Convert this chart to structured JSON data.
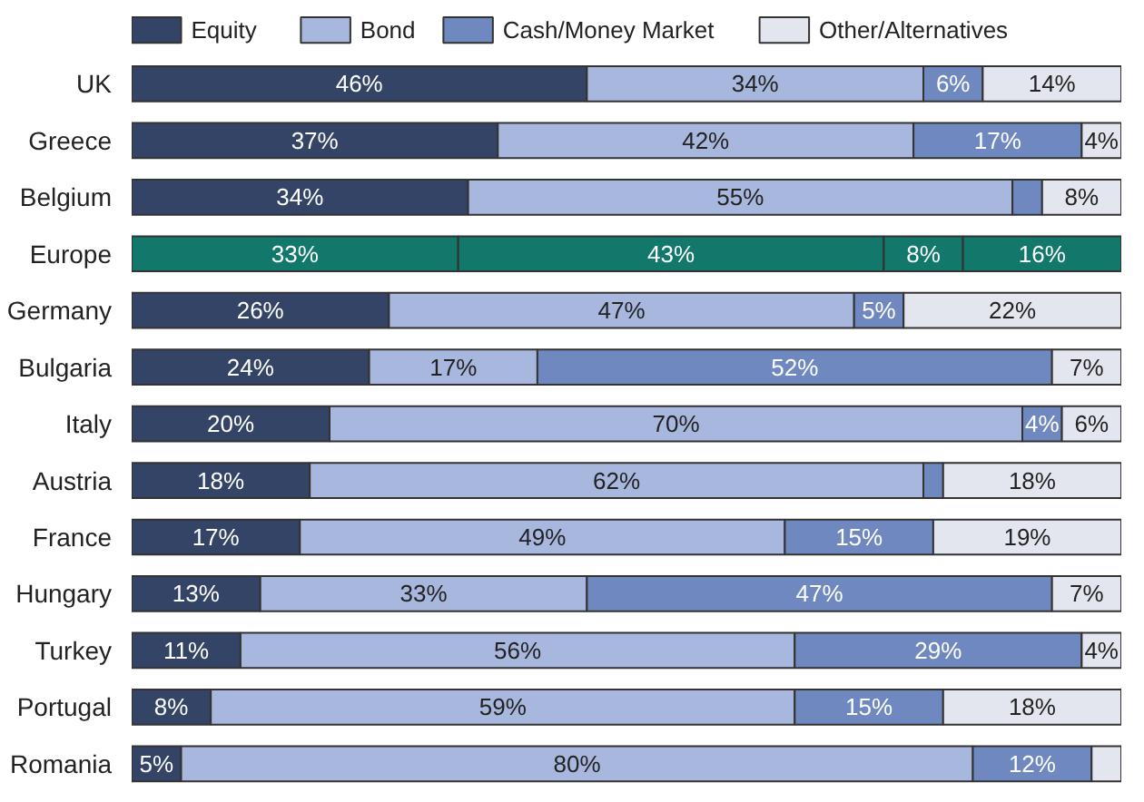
{
  "chart_data": {
    "type": "bar",
    "orientation": "horizontal",
    "stacked": true,
    "legend": "top",
    "grid": false,
    "tick_labels": "y",
    "xlim": [
      0,
      100
    ],
    "categories": [
      "UK",
      "Greece",
      "Belgium",
      "Europe",
      "Germany",
      "Bulgaria",
      "Italy",
      "Austria",
      "France",
      "Hungary",
      "Turkey",
      "Portugal",
      "Romania"
    ],
    "series": [
      {
        "name": "Equity",
        "color": "#344466",
        "colors": [
          "#344466",
          "#344466",
          "#344466",
          "#11786b",
          "#344466",
          "#344466",
          "#344466",
          "#344466",
          "#344466",
          "#344466",
          "#344466",
          "#344466",
          "#344466"
        ],
        "values": [
          46,
          37,
          34,
          33,
          26,
          24,
          20,
          18,
          17,
          13,
          11,
          8,
          5
        ],
        "value_labels": [
          "46%",
          "37%",
          "34%",
          "33%",
          "26%",
          "24%",
          "20%",
          "18%",
          "17%",
          "13%",
          "11%",
          "8%",
          "5%"
        ]
      },
      {
        "name": "Bond",
        "color": "#a8b7dd",
        "colors": [
          "#a8b7dd",
          "#a8b7dd",
          "#a8b7dd",
          "#11786b",
          "#a8b7dd",
          "#a8b7dd",
          "#a8b7dd",
          "#a8b7dd",
          "#a8b7dd",
          "#a8b7dd",
          "#a8b7dd",
          "#a8b7dd",
          "#a8b7dd"
        ],
        "values": [
          34,
          42,
          55,
          43,
          47,
          17,
          70,
          62,
          49,
          33,
          56,
          59,
          80
        ],
        "value_labels": [
          "34%",
          "42%",
          "55%",
          "43%",
          "47%",
          "17%",
          "70%",
          "62%",
          "49%",
          "33%",
          "56%",
          "59%",
          "80%"
        ]
      },
      {
        "name": "Cash/Money Market",
        "color": "#6f88c0",
        "colors": [
          "#6f88c0",
          "#6f88c0",
          "#6f88c0",
          "#11786b",
          "#6f88c0",
          "#6f88c0",
          "#6f88c0",
          "#6f88c0",
          "#6f88c0",
          "#6f88c0",
          "#6f88c0",
          "#6f88c0",
          "#6f88c0"
        ],
        "values": [
          6,
          17,
          3,
          8,
          5,
          52,
          4,
          2,
          15,
          47,
          29,
          15,
          12
        ],
        "value_labels": [
          "6%",
          "17%",
          null,
          "8%",
          "5%",
          "52%",
          "4%",
          null,
          "15%",
          "47%",
          "29%",
          "15%",
          "12%"
        ]
      },
      {
        "name": "Other/Alternatives",
        "color": "#e3e6ef",
        "colors": [
          "#e3e6ef",
          "#e3e6ef",
          "#e3e6ef",
          "#11786b",
          "#e3e6ef",
          "#e3e6ef",
          "#e3e6ef",
          "#e3e6ef",
          "#e3e6ef",
          "#e3e6ef",
          "#e3e6ef",
          "#e3e6ef",
          "#e3e6ef"
        ],
        "values": [
          14,
          4,
          8,
          16,
          22,
          7,
          6,
          18,
          19,
          7,
          4,
          18,
          3
        ],
        "value_labels": [
          "14%",
          "4%",
          "8%",
          "16%",
          "22%",
          "7%",
          "6%",
          "18%",
          "19%",
          "7%",
          "4%",
          "18%",
          null
        ]
      }
    ]
  }
}
